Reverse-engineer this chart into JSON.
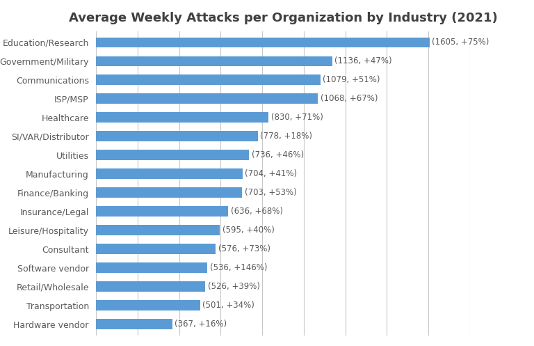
{
  "title": "Average Weekly Attacks per Organization by Industry (2021)",
  "categories": [
    "Hardware vendor",
    "Transportation",
    "Retail/Wholesale",
    "Software vendor",
    "Consultant",
    "Leisure/Hospitality",
    "Insurance/Legal",
    "Finance/Banking",
    "Manufacturing",
    "Utilities",
    "SI/VAR/Distributor",
    "Healthcare",
    "ISP/MSP",
    "Communications",
    "Government/Military",
    "Education/Research"
  ],
  "values": [
    367,
    501,
    526,
    536,
    576,
    595,
    636,
    703,
    704,
    736,
    778,
    830,
    1068,
    1079,
    1136,
    1605
  ],
  "labels": [
    "(367, +16%)",
    "(501, +34%)",
    "(526, +39%)",
    "(536, +146%)",
    "(576, +73%)",
    "(595, +40%)",
    "(636, +68%)",
    "(703, +53%)",
    "(704, +41%)",
    "(736, +46%)",
    "(778, +18%)",
    "(830, +71%)",
    "(1068, +67%)",
    "(1079, +51%)",
    "(1136, +47%)",
    "(1605, +75%)"
  ],
  "bar_color": "#5b9bd5",
  "background_color": "#ffffff",
  "grid_color": "#c8c8c8",
  "label_color": "#595959",
  "title_fontsize": 13,
  "label_fontsize": 8.5,
  "tick_fontsize": 9,
  "xlim": [
    0,
    1800
  ],
  "bar_height": 0.55
}
